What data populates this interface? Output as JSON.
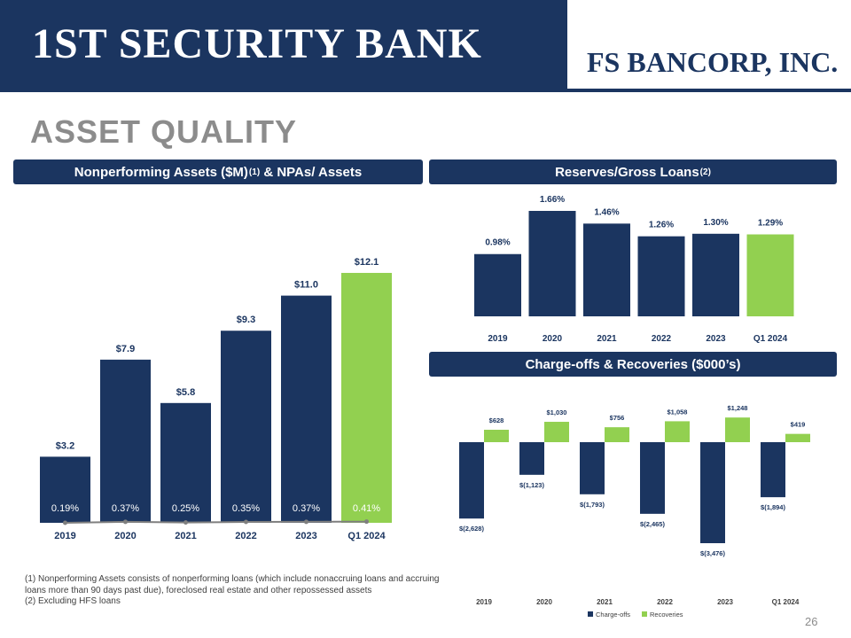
{
  "header": {
    "bank_name": "1ST SECURITY BANK",
    "corp_name": "FS BANCORP, INC.",
    "page_title": "ASSET QUALITY",
    "page_number": "26"
  },
  "panels": {
    "npa_title": "Nonperforming Assets ($M)",
    "npa_title_sup": "(1)",
    "npa_title_tail": " & NPAs/ Assets",
    "reserves_title": "Reserves/Gross Loans",
    "reserves_title_sup": "(2)",
    "chargeoffs_title": "Charge-offs & Recoveries ($000’s)"
  },
  "footnotes": {
    "note1": "(1) Nonperforming Assets consists of nonperforming loans (which include nonaccruing loans and accruing loans more than 90 days past due), foreclosed real estate and other repossessed assets",
    "note2": "(2) Excluding HFS loans"
  },
  "colors": {
    "navy": "#1b3560",
    "green": "#92d050"
  },
  "chart_data": [
    {
      "type": "bar",
      "categories": [
        "2019",
        "2020",
        "2021",
        "2022",
        "2023",
        "Q1 2024"
      ],
      "values": [
        3.2,
        7.9,
        5.8,
        9.3,
        11.0,
        12.1
      ],
      "value_labels": [
        "$3.2",
        "$7.9",
        "$5.8",
        "$9.3",
        "$11.0",
        "$12.1"
      ],
      "line_series": {
        "values": [
          0.19,
          0.37,
          0.25,
          0.35,
          0.37,
          0.41
        ],
        "labels": [
          "0.19%",
          "0.37%",
          "0.25%",
          "0.35%",
          "0.37%",
          "0.41%"
        ]
      },
      "highlight_index": 5,
      "ylim": [
        0,
        13
      ]
    },
    {
      "type": "bar",
      "categories": [
        "2019",
        "2020",
        "2021",
        "2022",
        "2023",
        "Q1 2024"
      ],
      "values": [
        0.98,
        1.66,
        1.46,
        1.26,
        1.3,
        1.29
      ],
      "value_labels": [
        "0.98%",
        "1.66%",
        "1.46%",
        "1.26%",
        "1.30%",
        "1.29%"
      ],
      "highlight_index": 5,
      "ylim": [
        0,
        1.8
      ]
    },
    {
      "type": "bar",
      "categories": [
        "2019",
        "2020",
        "2021",
        "2022",
        "2023",
        "Q1 2024"
      ],
      "series": [
        {
          "name": "Charge-offs",
          "values": [
            -2628,
            -1123,
            -1793,
            -2465,
            -3476,
            -1894
          ],
          "labels": [
            "$(2,628)",
            "$(1,123)",
            "$(1,793)",
            "$(2,465)",
            "$(3,476)",
            "$(1,894)"
          ]
        },
        {
          "name": "Recoveries",
          "values": [
            628,
            1030,
            756,
            1058,
            1248,
            419
          ],
          "labels": [
            "$628",
            "$1,030",
            "$756",
            "$1,058",
            "$1,248",
            "$419"
          ]
        }
      ],
      "legend": "bottom",
      "ylim": [
        -3500,
        1300
      ]
    }
  ]
}
